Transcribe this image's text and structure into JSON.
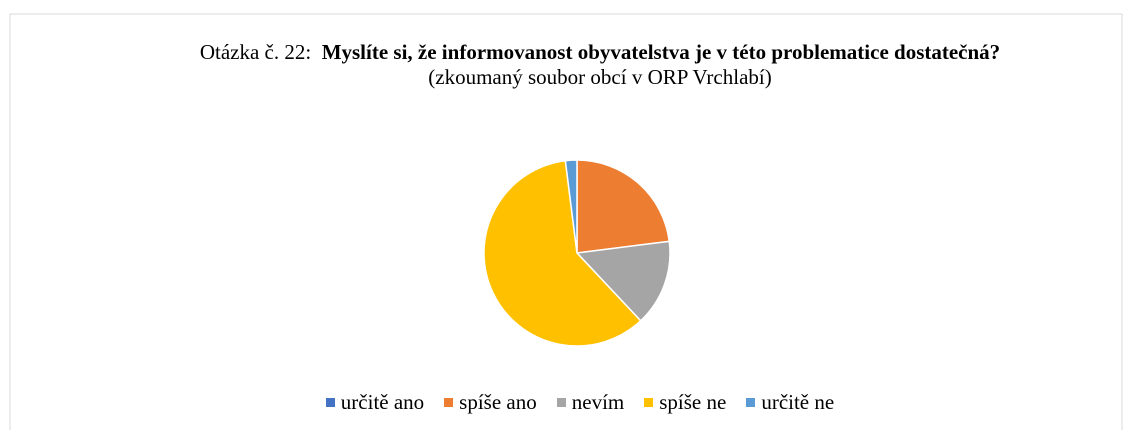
{
  "chart_data": {
    "type": "pie",
    "question_label": "Otázka č. 22:",
    "title": "Myslíte si, že informovanost obyvatelstva je v této problematice dostatečná?",
    "subtitle": "(zkoumaný soubor obcí v ORP Vrchlabí)",
    "categories": [
      "určitě ano",
      "spíše ano",
      "nevím",
      "spíše ne",
      "určitě ne"
    ],
    "values": [
      0,
      23,
      15,
      60,
      2
    ],
    "colors": [
      "#4472c4",
      "#ed7d31",
      "#a5a5a5",
      "#ffc000",
      "#5b9bd5"
    ],
    "legend": "bottom"
  }
}
